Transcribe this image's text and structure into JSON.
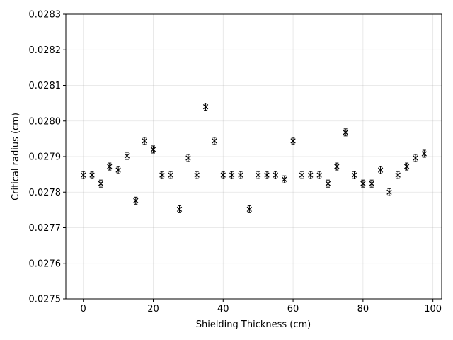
{
  "chart_data": {
    "type": "scatter",
    "title": "",
    "xlabel": "Shielding Thickness (cm)",
    "ylabel": "Critical radius (cm)",
    "xlim": [
      -5,
      102.5
    ],
    "ylim": [
      0.0275,
      0.0283
    ],
    "x_ticks": [
      "0",
      "20",
      "40",
      "60",
      "80",
      "100"
    ],
    "y_ticks": [
      "0.0275",
      "0.0276",
      "0.0277",
      "0.0278",
      "0.0279",
      "0.0280",
      "0.0281",
      "0.0282",
      "0.0283"
    ],
    "grid": true,
    "marker": "x with error bars",
    "color": "#000000",
    "series": [
      {
        "x": [
          0,
          2.5,
          5,
          7.5,
          10,
          12.5,
          15,
          17.5,
          20,
          22.5,
          25,
          27.5,
          30,
          32.5,
          35,
          37.5,
          40,
          42.5,
          45,
          47.5,
          50,
          52.5,
          55,
          57.5,
          60,
          62.5,
          65,
          67.5,
          70,
          72.5,
          75,
          77.5,
          80,
          82.5,
          85,
          87.5,
          90,
          92.5,
          95,
          97.5
        ],
        "y": [
          0.027848,
          0.027848,
          0.027824,
          0.027872,
          0.027862,
          0.027902,
          0.027776,
          0.027944,
          0.02792,
          0.027848,
          0.027848,
          0.027752,
          0.027896,
          0.027848,
          0.02804,
          0.027944,
          0.027848,
          0.027848,
          0.027848,
          0.027752,
          0.027848,
          0.027848,
          0.027848,
          0.027836,
          0.027944,
          0.027848,
          0.027848,
          0.027848,
          0.027824,
          0.027872,
          0.027968,
          0.027848,
          0.027824,
          0.027824,
          0.027862,
          0.0278,
          0.027848,
          0.027872,
          0.027896,
          0.027908
        ]
      }
    ]
  }
}
